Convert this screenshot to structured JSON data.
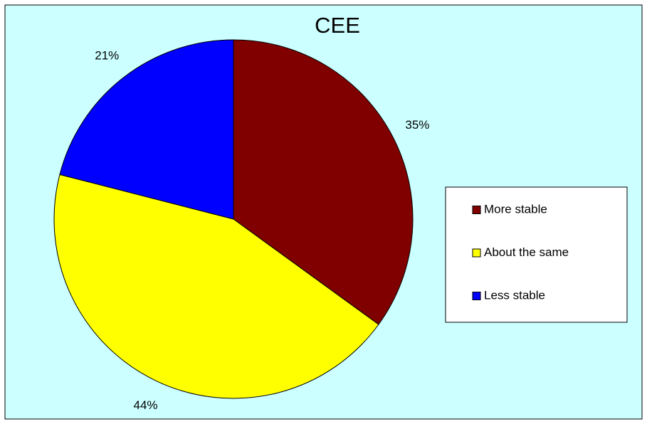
{
  "chart_data": {
    "type": "pie",
    "title": "CEE",
    "categories": [
      "More stable",
      "About the same",
      "Less stable"
    ],
    "values": [
      35,
      44,
      21
    ],
    "value_labels": [
      "35%",
      "44%",
      "21%"
    ],
    "colors": [
      "#800000",
      "#ffff00",
      "#0000ff"
    ],
    "legend": "right"
  }
}
